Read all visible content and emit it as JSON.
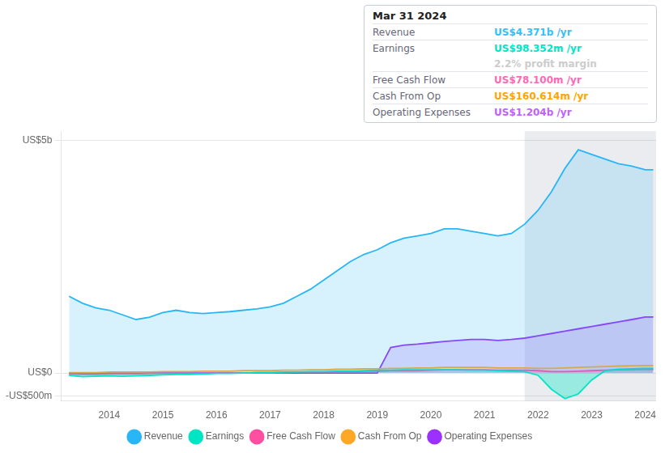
{
  "chart_data": {
    "type": "area",
    "x": [
      2013.25,
      2013.5,
      2013.75,
      2014.0,
      2014.25,
      2014.5,
      2014.75,
      2015.0,
      2015.25,
      2015.5,
      2015.75,
      2016.0,
      2016.25,
      2016.5,
      2016.75,
      2017.0,
      2017.25,
      2017.5,
      2017.75,
      2018.0,
      2018.25,
      2018.5,
      2018.75,
      2019.0,
      2019.25,
      2019.5,
      2019.75,
      2020.0,
      2020.25,
      2020.5,
      2020.75,
      2021.0,
      2021.25,
      2021.5,
      2021.75,
      2022.0,
      2022.25,
      2022.5,
      2022.75,
      2023.0,
      2023.25,
      2023.5,
      2023.75,
      2024.0,
      2024.15
    ],
    "series": [
      {
        "name": "Revenue",
        "color": "#29b6f6",
        "values": [
          1.65,
          1.5,
          1.4,
          1.35,
          1.25,
          1.15,
          1.2,
          1.3,
          1.35,
          1.3,
          1.28,
          1.3,
          1.32,
          1.35,
          1.38,
          1.42,
          1.5,
          1.65,
          1.8,
          2.0,
          2.2,
          2.4,
          2.55,
          2.65,
          2.8,
          2.9,
          2.95,
          3.0,
          3.1,
          3.1,
          3.05,
          3.0,
          2.95,
          3.0,
          3.2,
          3.5,
          3.9,
          4.4,
          4.8,
          4.7,
          4.6,
          4.5,
          4.45,
          4.371,
          4.371
        ]
      },
      {
        "name": "Earnings",
        "color": "#00e5c3",
        "values": [
          -0.05,
          -0.08,
          -0.07,
          -0.06,
          -0.07,
          -0.06,
          -0.05,
          -0.04,
          -0.03,
          -0.03,
          -0.02,
          -0.01,
          -0.01,
          0.0,
          0.01,
          0.01,
          0.02,
          0.02,
          0.03,
          0.03,
          0.04,
          0.04,
          0.05,
          0.06,
          0.06,
          0.07,
          0.07,
          0.07,
          0.07,
          0.07,
          0.06,
          0.06,
          0.05,
          0.04,
          0.03,
          -0.05,
          -0.35,
          -0.55,
          -0.45,
          -0.15,
          0.05,
          0.08,
          0.09,
          0.098,
          0.098
        ]
      },
      {
        "name": "Free Cash Flow",
        "color": "#ff4fa0",
        "values": [
          -0.02,
          -0.03,
          -0.03,
          -0.02,
          -0.02,
          -0.02,
          -0.01,
          -0.01,
          -0.01,
          -0.01,
          -0.01,
          0.0,
          0.0,
          0.0,
          0.01,
          0.01,
          0.01,
          0.02,
          0.02,
          0.02,
          0.03,
          0.03,
          0.04,
          0.04,
          0.05,
          0.05,
          0.05,
          0.06,
          0.07,
          0.07,
          0.07,
          0.07,
          0.06,
          0.06,
          0.06,
          0.05,
          0.03,
          0.03,
          0.04,
          0.05,
          0.06,
          0.07,
          0.075,
          0.078,
          0.078
        ]
      },
      {
        "name": "Cash From Op",
        "color": "#ffa726",
        "type": "line",
        "values": [
          0.01,
          0.01,
          0.01,
          0.02,
          0.02,
          0.02,
          0.02,
          0.03,
          0.03,
          0.03,
          0.04,
          0.04,
          0.04,
          0.05,
          0.05,
          0.05,
          0.06,
          0.06,
          0.07,
          0.07,
          0.08,
          0.08,
          0.09,
          0.09,
          0.1,
          0.1,
          0.11,
          0.11,
          0.12,
          0.12,
          0.12,
          0.12,
          0.11,
          0.11,
          0.11,
          0.1,
          0.1,
          0.11,
          0.12,
          0.13,
          0.14,
          0.15,
          0.155,
          0.16,
          0.16
        ]
      },
      {
        "name": "Operating Expenses",
        "color": "#9b30ff",
        "values": [
          0.0,
          0.0,
          0.0,
          0.0,
          0.0,
          0.0,
          0.0,
          0.0,
          0.0,
          0.0,
          0.0,
          0.0,
          0.0,
          0.0,
          0.0,
          0.0,
          0.0,
          0.0,
          0.0,
          0.0,
          0.0,
          0.0,
          0.0,
          0.0,
          0.55,
          0.6,
          0.62,
          0.65,
          0.68,
          0.7,
          0.72,
          0.72,
          0.7,
          0.72,
          0.75,
          0.8,
          0.85,
          0.9,
          0.95,
          1.0,
          1.05,
          1.1,
          1.15,
          1.204,
          1.204
        ]
      }
    ],
    "xlim": [
      2013.1,
      2024.2
    ],
    "xticks": [
      2014,
      2015,
      2016,
      2017,
      2018,
      2019,
      2020,
      2021,
      2022,
      2023,
      2024
    ],
    "ylim": [
      -0.6,
      5.2
    ],
    "yticks": [
      {
        "value": -0.5,
        "label": "-US$500m"
      },
      {
        "value": 0.0,
        "label": "US$0"
      },
      {
        "value": 5.0,
        "label": "US$5b"
      }
    ],
    "highlight_x": [
      2021.75,
      2024.2
    ],
    "grid": true,
    "legend": "bottom",
    "annotations": [
      {
        "label": "Mar 31 2024"
      },
      {
        "label": "Revenue",
        "value": "US$4.371b /yr",
        "color": "#3bbdf5"
      },
      {
        "label": "Earnings",
        "value": "US$98.352m /yr",
        "color": "#00e5c3"
      },
      {
        "value": "2.2% profit margin",
        "color": "#cccccc"
      },
      {
        "label": "Free Cash Flow",
        "value": "US$78.100m /yr",
        "color": "#ff69b4"
      },
      {
        "label": "Cash From Op",
        "value": "US$160.614m /yr",
        "color": "#ffa500"
      },
      {
        "label": "Operating Expenses",
        "value": "US$1.204b /yr",
        "color": "#bf5fff"
      }
    ]
  }
}
